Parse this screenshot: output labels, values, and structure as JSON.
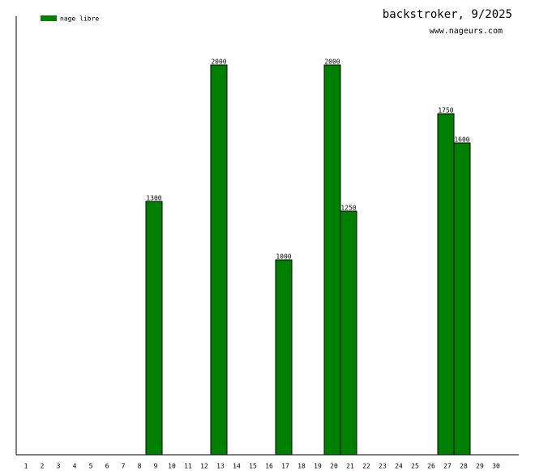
{
  "chart_data": {
    "type": "bar",
    "title": "backstroker, 9/2025",
    "subtitle": "www.nageurs.com",
    "categories": [
      "1",
      "2",
      "3",
      "4",
      "5",
      "6",
      "7",
      "8",
      "9",
      "10",
      "11",
      "12",
      "13",
      "14",
      "15",
      "16",
      "17",
      "18",
      "19",
      "20",
      "21",
      "22",
      "23",
      "24",
      "25",
      "26",
      "27",
      "28",
      "29",
      "30"
    ],
    "series": [
      {
        "name": "nage libre",
        "color": "#008000",
        "values": [
          null,
          null,
          null,
          null,
          null,
          null,
          null,
          null,
          1300,
          null,
          null,
          null,
          2000,
          null,
          null,
          null,
          1000,
          null,
          null,
          2000,
          1250,
          null,
          null,
          null,
          null,
          null,
          1750,
          1600,
          null,
          null
        ]
      }
    ],
    "ylim": [
      0,
      2250
    ]
  }
}
